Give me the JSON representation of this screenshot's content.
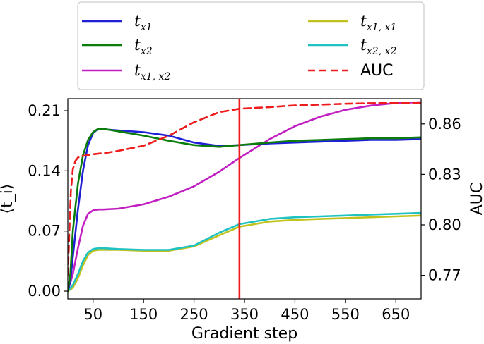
{
  "chart_data": {
    "type": "line",
    "xlabel": "Gradient step",
    "ylabel_left": "⟨t_i⟩",
    "ylabel_right": "AUC",
    "x_ticks": [
      50,
      150,
      250,
      350,
      450,
      550,
      650
    ],
    "y_left_ticks": [
      "0.00",
      "0.07",
      "0.14",
      "0.21"
    ],
    "y_right_ticks": [
      "0.77",
      "0.80",
      "0.83",
      "0.86"
    ],
    "xlim": [
      0,
      700
    ],
    "ylim_left": [
      -0.009,
      0.224
    ],
    "ylim_right": [
      0.756,
      0.875
    ],
    "vline_x": 340,
    "legend_position": "top",
    "series": [
      {
        "name": "t_{x1}",
        "axis": "left",
        "color": "#1f1fd6",
        "dash": "solid",
        "x": [
          0,
          5,
          10,
          20,
          30,
          40,
          50,
          60,
          70,
          80,
          100,
          150,
          200,
          250,
          300,
          340,
          400,
          450,
          500,
          550,
          600,
          650,
          700
        ],
        "y": [
          0.0,
          0.012,
          0.04,
          0.095,
          0.14,
          0.17,
          0.184,
          0.189,
          0.189,
          0.188,
          0.187,
          0.185,
          0.181,
          0.173,
          0.169,
          0.17,
          0.172,
          0.173,
          0.174,
          0.175,
          0.176,
          0.176,
          0.177
        ]
      },
      {
        "name": "t_{x2}",
        "axis": "left",
        "color": "#0a7d0a",
        "dash": "solid",
        "x": [
          0,
          5,
          10,
          20,
          30,
          40,
          50,
          60,
          70,
          80,
          100,
          150,
          200,
          250,
          300,
          340,
          400,
          450,
          500,
          550,
          600,
          650,
          700
        ],
        "y": [
          0.0,
          0.02,
          0.07,
          0.125,
          0.158,
          0.176,
          0.185,
          0.189,
          0.189,
          0.188,
          0.186,
          0.181,
          0.175,
          0.17,
          0.168,
          0.17,
          0.173,
          0.175,
          0.176,
          0.177,
          0.178,
          0.178,
          0.179
        ]
      },
      {
        "name": "t_{x1, x2}",
        "axis": "left",
        "color": "#c21fc2",
        "dash": "solid",
        "x": [
          0,
          10,
          20,
          30,
          40,
          50,
          60,
          70,
          100,
          150,
          200,
          250,
          300,
          340,
          400,
          450,
          500,
          550,
          600,
          650,
          700
        ],
        "y": [
          0.0,
          0.02,
          0.05,
          0.076,
          0.09,
          0.094,
          0.095,
          0.095,
          0.096,
          0.101,
          0.11,
          0.122,
          0.139,
          0.155,
          0.177,
          0.192,
          0.203,
          0.211,
          0.216,
          0.219,
          0.22
        ]
      },
      {
        "name": "t_{x1, x1}",
        "axis": "left",
        "color": "#c2c21f",
        "dash": "solid",
        "x": [
          0,
          10,
          20,
          30,
          40,
          50,
          60,
          70,
          100,
          150,
          200,
          250,
          300,
          340,
          400,
          450,
          500,
          550,
          600,
          650,
          700
        ],
        "y": [
          0.0,
          0.004,
          0.015,
          0.03,
          0.042,
          0.047,
          0.048,
          0.048,
          0.048,
          0.047,
          0.047,
          0.052,
          0.065,
          0.075,
          0.081,
          0.083,
          0.084,
          0.085,
          0.086,
          0.087,
          0.088
        ]
      },
      {
        "name": "t_{x2, x2}",
        "axis": "left",
        "color": "#1fc2c2",
        "dash": "solid",
        "x": [
          0,
          10,
          20,
          30,
          40,
          50,
          60,
          70,
          100,
          150,
          200,
          250,
          300,
          340,
          400,
          450,
          500,
          550,
          600,
          650,
          700
        ],
        "y": [
          0.0,
          0.007,
          0.02,
          0.035,
          0.045,
          0.049,
          0.05,
          0.05,
          0.049,
          0.048,
          0.048,
          0.053,
          0.068,
          0.078,
          0.084,
          0.086,
          0.087,
          0.088,
          0.089,
          0.09,
          0.091
        ]
      },
      {
        "name": "AUC",
        "axis": "right",
        "color": "#ee1c1c",
        "dash": "dashed",
        "x": [
          0,
          3,
          6,
          10,
          15,
          20,
          30,
          50,
          80,
          100,
          150,
          200,
          250,
          300,
          340,
          400,
          450,
          500,
          550,
          600,
          650,
          700
        ],
        "y": [
          0.77,
          0.795,
          0.82,
          0.833,
          0.838,
          0.84,
          0.841,
          0.842,
          0.843,
          0.844,
          0.847,
          0.853,
          0.861,
          0.867,
          0.869,
          0.87,
          0.871,
          0.8715,
          0.872,
          0.8723,
          0.8725,
          0.8725
        ]
      }
    ]
  }
}
